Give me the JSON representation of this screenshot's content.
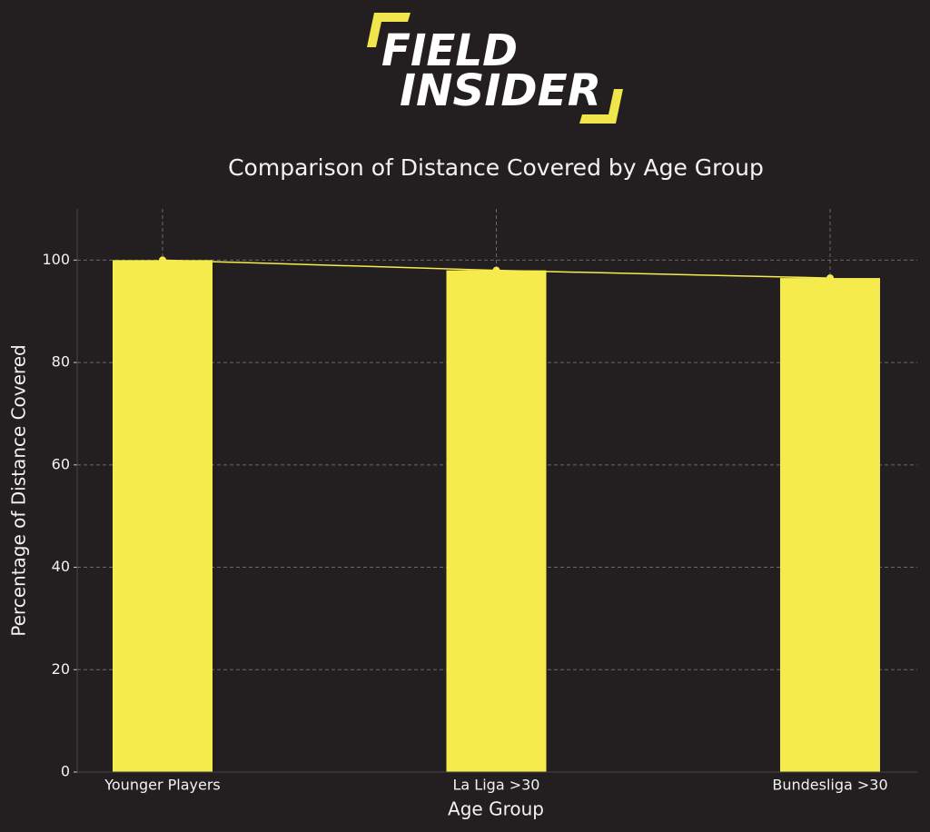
{
  "logo": {
    "line1": "FIELD",
    "line2": "INSIDER"
  },
  "chart_data": {
    "type": "bar",
    "title": "Comparison of Distance Covered by Age Group",
    "x_label": "Age Group",
    "y_label": "Percentage of Distance Covered",
    "categories": [
      "Younger Players",
      "La Liga >30",
      "Bundesliga >30"
    ],
    "values": [
      100,
      98,
      96.5
    ],
    "color": "#f5eb4d",
    "overlay_line": true,
    "ylim": [
      0,
      110
    ],
    "yticks": [
      0,
      20,
      40,
      60,
      80,
      100
    ],
    "grid": true
  }
}
